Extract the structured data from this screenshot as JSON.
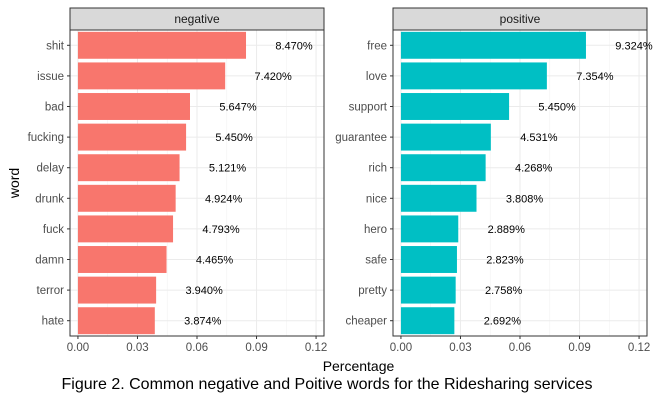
{
  "chart_data": {
    "type": "bar",
    "orientation": "horizontal",
    "xlabel": "Percentage",
    "ylabel": "word",
    "xlim": [
      -0.004,
      0.124
    ],
    "xticks": [
      0.0,
      0.03,
      0.06,
      0.09,
      0.12
    ],
    "xtick_labels": [
      "0.00",
      "0.03",
      "0.06",
      "0.09",
      "0.12"
    ],
    "grid": true,
    "panels": [
      {
        "strip_label": "negative",
        "color": "#F8766D",
        "categories": [
          "shit",
          "issue",
          "bad",
          "fucking",
          "delay",
          "drunk",
          "fuck",
          "damn",
          "terror",
          "hate"
        ],
        "values": [
          0.0847,
          0.0742,
          0.05647,
          0.0545,
          0.05121,
          0.04924,
          0.04793,
          0.04465,
          0.0394,
          0.03874
        ],
        "labels": [
          "8.470%",
          "7.420%",
          "5.647%",
          "5.450%",
          "5.121%",
          "4.924%",
          "4.793%",
          "4.465%",
          "3.940%",
          "3.874%"
        ]
      },
      {
        "strip_label": "positive",
        "color": "#00BFC4",
        "categories": [
          "free",
          "love",
          "support",
          "guarantee",
          "rich",
          "nice",
          "hero",
          "safe",
          "pretty",
          "cheaper"
        ],
        "values": [
          0.09324,
          0.07354,
          0.0545,
          0.04531,
          0.04268,
          0.03808,
          0.02889,
          0.02823,
          0.02758,
          0.02692
        ],
        "labels": [
          "9.324%",
          "7.354%",
          "5.450%",
          "4.531%",
          "4.268%",
          "3.808%",
          "2.889%",
          "2.823%",
          "2.758%",
          "2.692%"
        ]
      }
    ]
  },
  "caption": "Figure 2. Common negative and Poitive words for the Ridesharing services"
}
